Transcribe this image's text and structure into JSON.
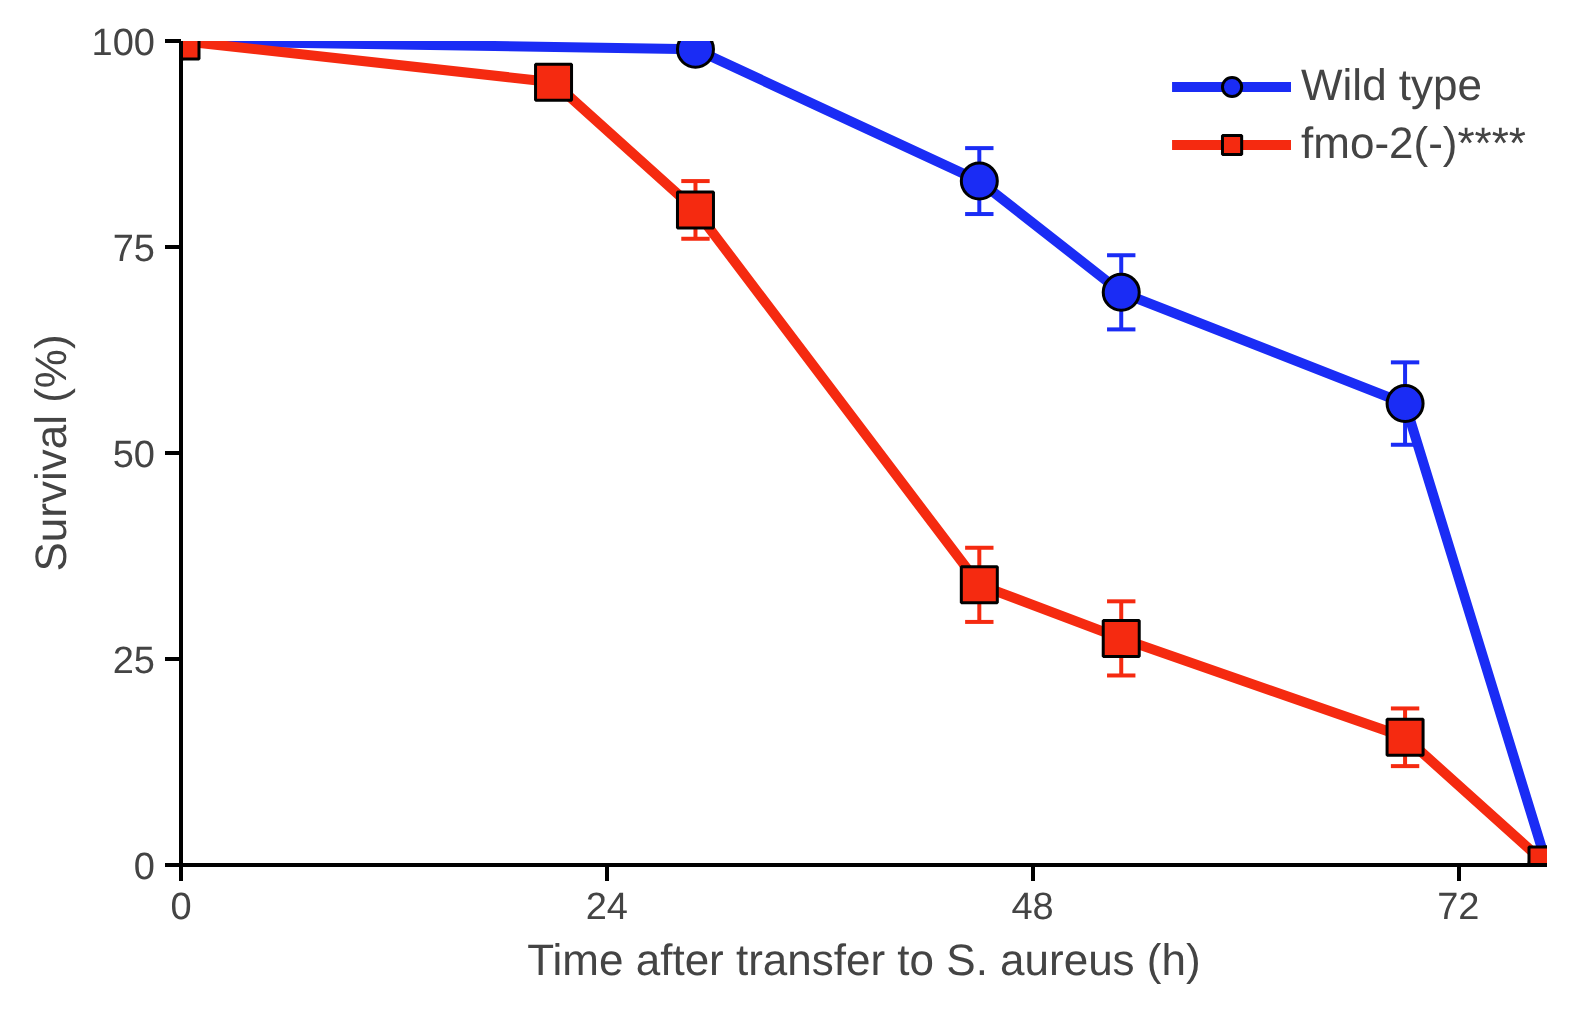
{
  "chart_data": {
    "type": "line",
    "xlabel": "Time after transfer to S. aureus (h)",
    "ylabel": "Survival (%)",
    "xlim": [
      0,
      77
    ],
    "xticks": [
      0,
      24,
      48,
      72
    ],
    "ylim": [
      0,
      100
    ],
    "yticks": [
      0,
      25,
      50,
      75,
      100
    ],
    "grid": false,
    "legend": "top right",
    "line_style": "solid",
    "series": [
      {
        "name": "Wild type",
        "color": "#1a2cf5",
        "marker": "circle",
        "x": [
          0,
          29,
          45,
          53,
          69,
          77
        ],
        "values": [
          100,
          99,
          83,
          69.5,
          56,
          0
        ],
        "errors": [
          null,
          null,
          4,
          4.5,
          5,
          null
        ]
      },
      {
        "name": "fmo-2(-)****",
        "color": "#f52a10",
        "marker": "square",
        "x": [
          0,
          21,
          29,
          45,
          53,
          69,
          77
        ],
        "values": [
          100,
          95,
          79.5,
          34,
          27.5,
          15.5,
          0
        ],
        "errors": [
          null,
          null,
          3.5,
          4.5,
          4.5,
          3.5,
          null
        ]
      }
    ]
  }
}
